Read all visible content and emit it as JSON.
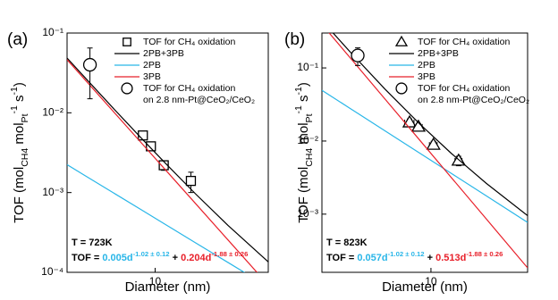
{
  "chart_data": [
    {
      "type": "loglog",
      "panel_label": "(a)",
      "xlabel": "Diameter (nm)",
      "ylabel": [
        {
          "text": "TOF (mol"
        },
        {
          "text": "CH4",
          "shift": "sub"
        },
        {
          "text": " mol"
        },
        {
          "text": "Pt",
          "shift": "sub"
        },
        {
          "text": "-1",
          "shift": "super"
        },
        {
          "text": " s"
        },
        {
          "text": "-1",
          "shift": "super"
        },
        {
          "text": ")"
        }
      ],
      "xlim": [
        2.2,
        70
      ],
      "ylim": [
        0.0001,
        0.1
      ],
      "xticks": [
        10
      ],
      "yticks": [
        {
          "value": 0.0001,
          "label": "10⁻⁴"
        },
        {
          "value": 0.001,
          "label": "10⁻³"
        },
        {
          "value": 0.01,
          "label": "10⁻²"
        },
        {
          "value": 0.1,
          "label": "10⁻¹"
        }
      ],
      "series": [
        {
          "name": "TOF for CH₄ oxidation",
          "marker": "square",
          "color": "#000000",
          "x": [
            8.1,
            9.3,
            11.6,
            18.5
          ],
          "values": [
            0.0052,
            0.0038,
            0.0022,
            0.0014
          ],
          "xerr": [
            0.5,
            0.5,
            0.6,
            0.8
          ],
          "yerr": [
            0.0006,
            0.0004,
            0.0003,
            0.0004
          ]
        },
        {
          "name": "2PB+3PB",
          "line": true,
          "color": "#000000",
          "x": [
            2.2,
            3,
            5,
            8,
            12,
            20,
            35,
            70
          ],
          "values": [
            0.0486,
            0.0275,
            0.01087,
            0.00469,
            0.00231,
            0.000966,
            0.000388,
            0.000135
          ]
        },
        {
          "name": "2PB",
          "line": true,
          "color": "#29b6e8",
          "x": [
            2.2,
            3,
            5,
            8,
            12,
            20,
            35,
            70
          ],
          "values": [
            0.00224,
            0.00163,
            0.000968,
            0.0006,
            0.000396,
            0.000235,
            0.000133,
            6.56e-05
          ]
        },
        {
          "name": "3PB",
          "line": true,
          "color": "#e8202a",
          "x": [
            2.2,
            3,
            5,
            8,
            12,
            20,
            35,
            70
          ],
          "values": [
            0.0464,
            0.02587,
            0.0099,
            0.00409,
            0.00191,
            0.000731,
            0.000255,
            6.93e-05
          ]
        },
        {
          "name": "TOF for CH₄ oxidation",
          "note": "on 2.8 nm-Pt@CeO₂/CeO₂",
          "marker": "circle",
          "color": "#000000",
          "x": [
            3.26
          ],
          "values": [
            0.04
          ],
          "xerr": [
            0.3
          ],
          "yerr": [
            0.025
          ]
        }
      ],
      "annotations": [
        {
          "text": "T = 723K"
        },
        {
          "parts": [
            {
              "text": "TOF = ",
              "color": "#000000"
            },
            {
              "text": "0.005d",
              "color": "#29b6e8"
            },
            {
              "text": "-1.02 ± 0.12",
              "color": "#29b6e8",
              "shift": "super"
            },
            {
              "text": " + ",
              "color": "#000000"
            },
            {
              "text": "0.204d",
              "color": "#e8202a"
            },
            {
              "text": "-1.88 ± 0.26",
              "color": "#e8202a",
              "shift": "super"
            }
          ]
        }
      ]
    },
    {
      "type": "loglog",
      "panel_label": "(b)",
      "xlabel": "Diameter (nm)",
      "ylabel": [
        {
          "text": "TOF (mol"
        },
        {
          "text": "CH4",
          "shift": "sub"
        },
        {
          "text": " mol"
        },
        {
          "text": "Pt",
          "shift": "sub"
        },
        {
          "text": "-1",
          "shift": "super"
        },
        {
          "text": " s"
        },
        {
          "text": "-1",
          "shift": "super"
        },
        {
          "text": ")"
        }
      ],
      "xlim": [
        1.15,
        68
      ],
      "ylim": [
        0.00016,
        0.3
      ],
      "xticks": [
        10
      ],
      "yticks": [
        {
          "value": 0.001,
          "label": "10⁻³"
        },
        {
          "value": 0.01,
          "label": "10⁻²"
        },
        {
          "value": 0.1,
          "label": "10⁻¹"
        }
      ],
      "series": [
        {
          "name": "TOF for CH₄ oxidation",
          "marker": "triangle",
          "color": "#000000",
          "x": [
            6.54,
            7.8,
            10.5,
            17.3
          ],
          "values": [
            0.018,
            0.0157,
            0.0089,
            0.0054
          ],
          "xerr": [
            0.6,
            0.6,
            0.8,
            1.2
          ],
          "yerr": [
            0.002,
            0.0015,
            0.001,
            0.0008
          ]
        },
        {
          "name": "2PB+3PB",
          "line": true,
          "color": "#000000",
          "x": [
            1.15,
            2,
            4,
            8,
            15,
            30,
            68
          ],
          "values": [
            0.443,
            0.1675,
            0.0517,
            0.01712,
            0.00676,
            0.002634,
            0.000954
          ]
        },
        {
          "name": "2PB",
          "line": true,
          "color": "#29b6e8",
          "x": [
            1.15,
            2,
            4,
            8,
            15,
            30,
            68
          ],
          "values": [
            0.0494,
            0.0281,
            0.01386,
            0.00683,
            0.0036,
            0.001776,
            0.00077
          ]
        },
        {
          "name": "3PB",
          "line": true,
          "color": "#e8202a",
          "x": [
            1.15,
            2,
            4,
            8,
            15,
            30,
            68
          ],
          "values": [
            0.394,
            0.1394,
            0.03787,
            0.01029,
            0.003157,
            0.000858,
            0.000184
          ]
        },
        {
          "name": "TOF for CH₄ oxidation",
          "note": "on 2.8 nm-Pt@CeO₂/CeO₂",
          "marker": "circle",
          "color": "#000000",
          "x": [
            2.34
          ],
          "values": [
            0.148
          ],
          "xerr": [
            0.2
          ],
          "yerr": [
            0.04
          ]
        }
      ],
      "annotations": [
        {
          "text": "T = 823K"
        },
        {
          "parts": [
            {
              "text": "TOF = ",
              "color": "#000000"
            },
            {
              "text": "0.057d",
              "color": "#29b6e8"
            },
            {
              "text": "-1.02 ± 0.12",
              "color": "#29b6e8",
              "shift": "super"
            },
            {
              "text": " + ",
              "color": "#000000"
            },
            {
              "text": "0.513d",
              "color": "#e8202a"
            },
            {
              "text": "-1.88 ± 0.26",
              "color": "#e8202a",
              "shift": "super"
            }
          ]
        }
      ]
    }
  ]
}
